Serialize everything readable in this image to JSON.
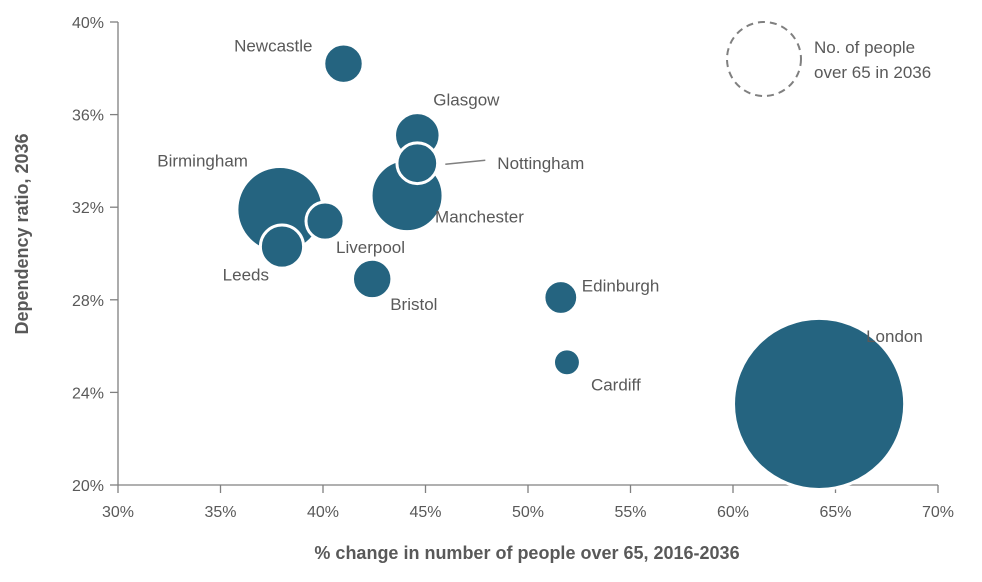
{
  "chart_data": {
    "type": "bubble",
    "xlabel": "% change in number of people over 65, 2016-2036",
    "ylabel": "Dependency ratio, 2036",
    "xlim": [
      30,
      70
    ],
    "ylim": [
      20,
      40
    ],
    "x_ticks": [
      "30%",
      "35%",
      "40%",
      "45%",
      "50%",
      "55%",
      "60%",
      "65%",
      "70%"
    ],
    "y_ticks": [
      "20%",
      "24%",
      "28%",
      "32%",
      "36%",
      "40%"
    ],
    "legend_text": [
      "No. of people",
      "over 65 in 2036"
    ],
    "colors": {
      "bubble": "#256480",
      "axis": "#808080",
      "text": "#595959"
    },
    "points": [
      {
        "label": "Newcastle",
        "x": 41.0,
        "y": 38.2,
        "size": 0.3
      },
      {
        "label": "Glasgow",
        "x": 44.6,
        "y": 35.1,
        "size": 0.4
      },
      {
        "label": "Nottingham",
        "x": 44.6,
        "y": 33.9,
        "size": 0.32
      },
      {
        "label": "Manchester",
        "x": 44.1,
        "y": 32.5,
        "size": 1.0
      },
      {
        "label": "Birmingham",
        "x": 37.9,
        "y": 31.9,
        "size": 1.43
      },
      {
        "label": "Liverpool",
        "x": 40.1,
        "y": 31.4,
        "size": 0.28
      },
      {
        "label": "Leeds",
        "x": 38.0,
        "y": 30.3,
        "size": 0.36
      },
      {
        "label": "Bristol",
        "x": 42.4,
        "y": 28.9,
        "size": 0.3
      },
      {
        "label": "Edinburgh",
        "x": 51.6,
        "y": 28.1,
        "size": 0.22
      },
      {
        "label": "Cardiff",
        "x": 51.9,
        "y": 25.3,
        "size": 0.14
      },
      {
        "label": "London",
        "x": 64.2,
        "y": 23.5,
        "size": 5.65
      }
    ]
  }
}
